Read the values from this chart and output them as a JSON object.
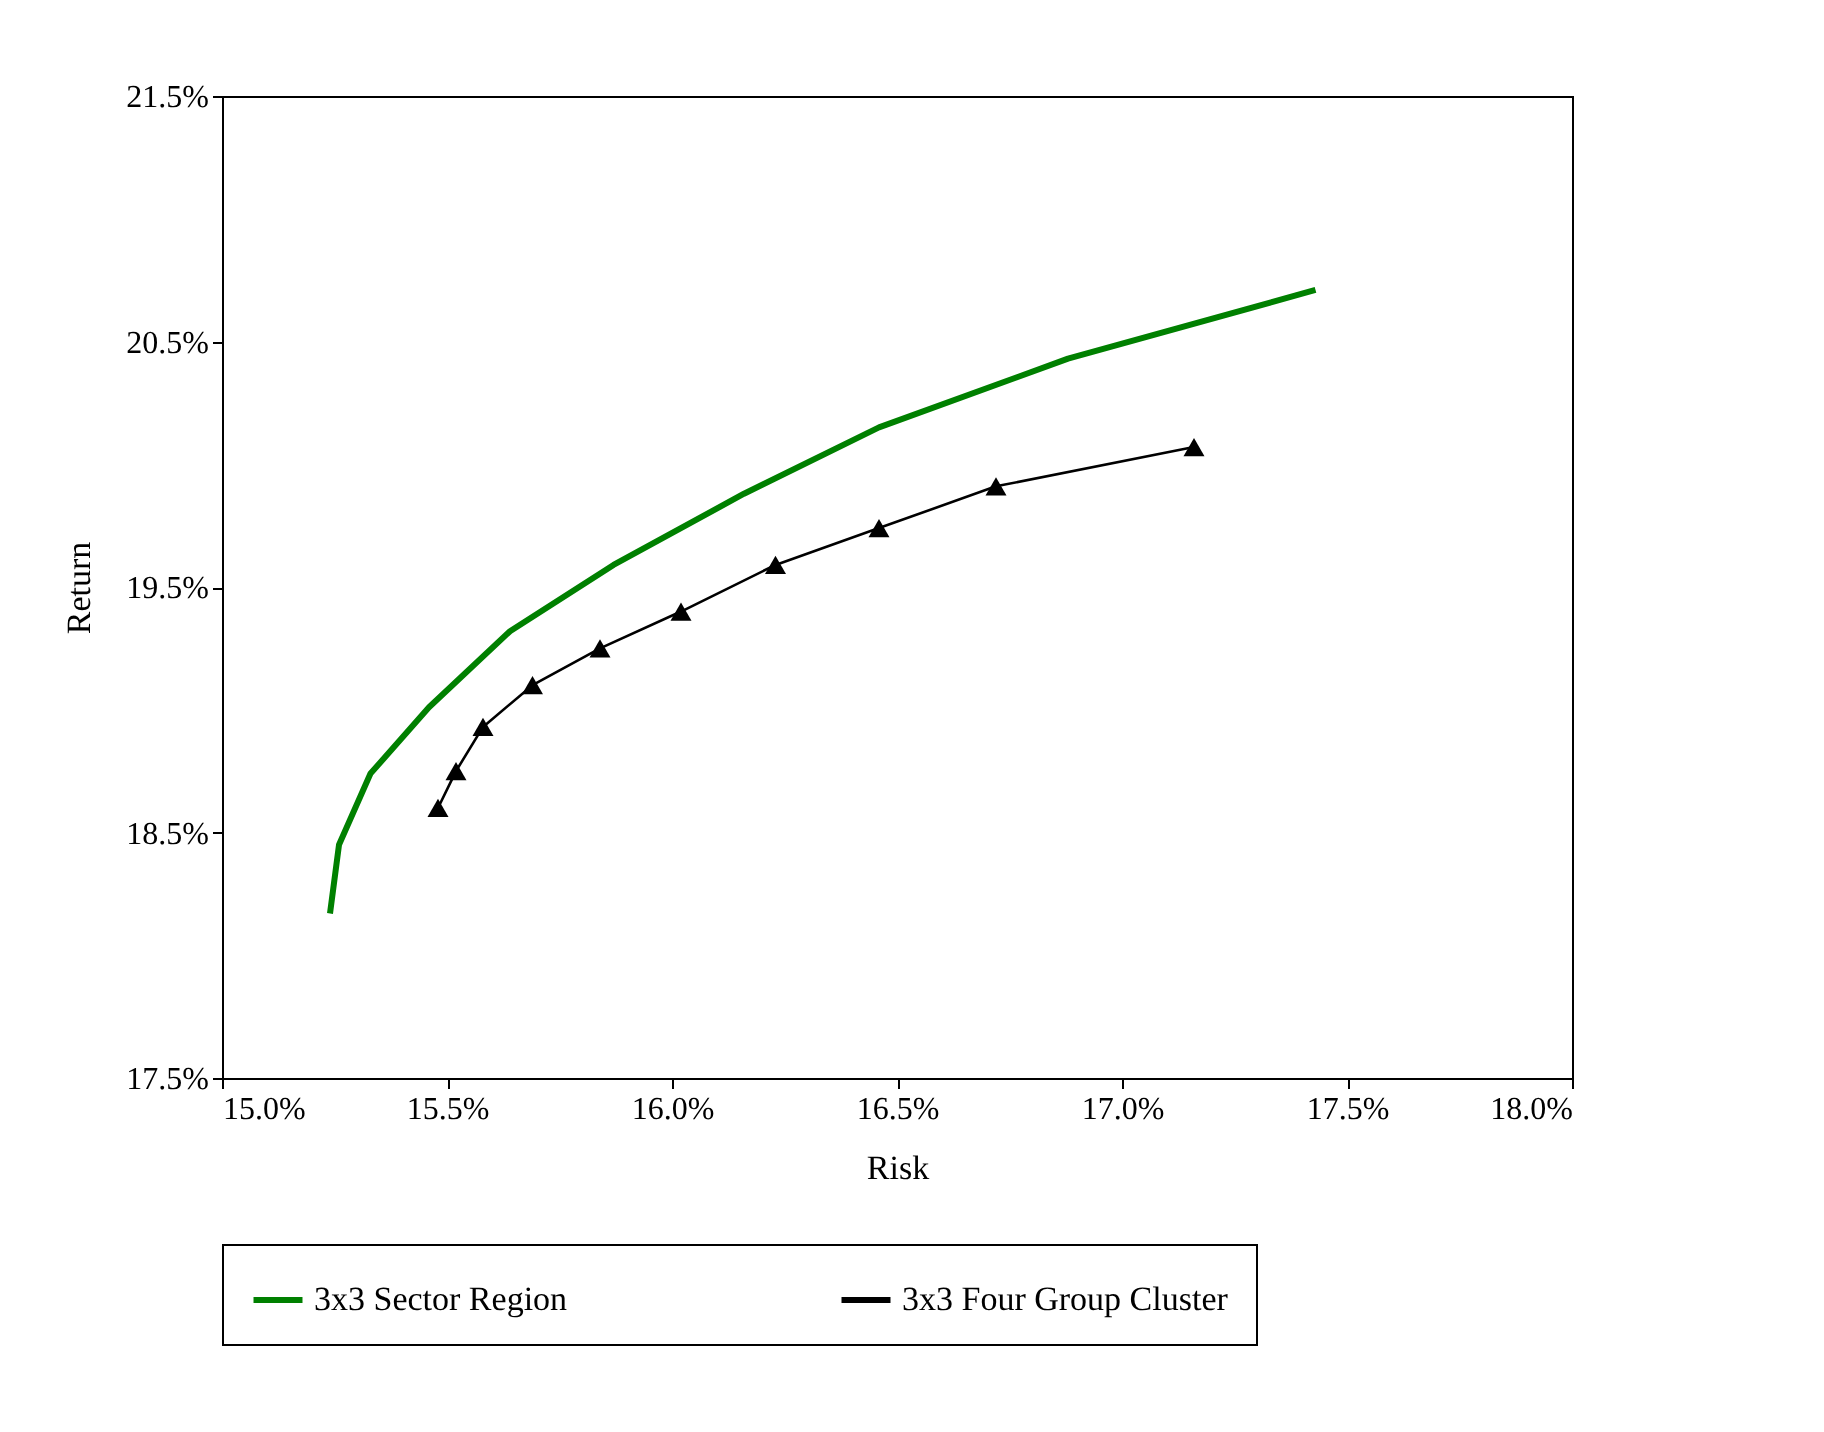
{
  "chart_data": {
    "type": "line",
    "xlabel": "Risk",
    "ylabel": "Return",
    "xlim": [
      15.0,
      18.0
    ],
    "xticks": [
      {
        "value": 15.0,
        "label": "15.0%"
      },
      {
        "value": 15.5,
        "label": "15.5%"
      },
      {
        "value": 16.0,
        "label": "16.0%"
      },
      {
        "value": 16.5,
        "label": "16.5%"
      },
      {
        "value": 17.0,
        "label": "17.0%"
      },
      {
        "value": 17.5,
        "label": "17.5%"
      },
      {
        "value": 18.0,
        "label": "18.0%"
      }
    ],
    "ylim": [
      17.5,
      21.5
    ],
    "yticks": [
      {
        "value": 17.5,
        "label": "17.5%"
      },
      {
        "value": 18.5,
        "label": "18.5%"
      },
      {
        "value": 19.5,
        "label": "19.5%"
      },
      {
        "value": 20.5,
        "label": "20.5%"
      },
      {
        "value": 21.5,
        "label": "21.5%"
      }
    ],
    "grid": false,
    "legend": "bottom",
    "line_style": "solid",
    "series": [
      {
        "name": "3x3 Sector Region",
        "color": "#008000",
        "marker": "none",
        "x": [
          15.24,
          15.26,
          15.33,
          15.46,
          15.64,
          15.87,
          16.16,
          16.46,
          16.88,
          17.43
        ],
        "values": [
          18.17,
          18.45,
          18.74,
          19.01,
          19.32,
          19.59,
          19.88,
          20.15,
          20.43,
          20.71
        ]
      },
      {
        "name": "3x3 Four Group Cluster",
        "color": "#000000",
        "marker": "triangle",
        "x": [
          15.48,
          15.52,
          15.58,
          15.69,
          15.84,
          16.02,
          16.23,
          16.46,
          16.72,
          17.16
        ],
        "values": [
          18.6,
          18.75,
          18.93,
          19.1,
          19.25,
          19.4,
          19.59,
          19.74,
          19.91,
          20.07
        ]
      }
    ]
  }
}
